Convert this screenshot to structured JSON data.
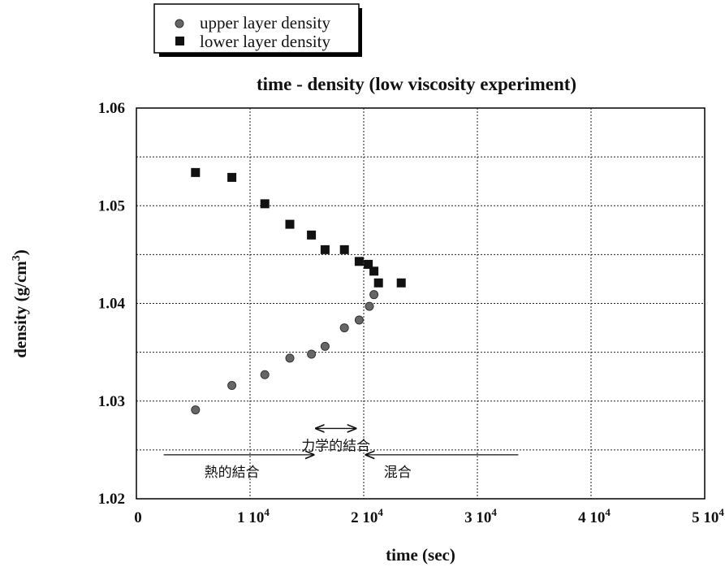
{
  "chart_data": {
    "type": "scatter",
    "title": "time - density  (low viscosity experiment)",
    "xlabel": "time  (sec)",
    "ylabel": "density  (g/cm",
    "ylabel_sup": "3",
    "ylabel_close": ")",
    "xlim": [
      0,
      50000
    ],
    "ylim": [
      1.02,
      1.06
    ],
    "x_ticks": [
      0,
      10000,
      20000,
      30000,
      40000,
      50000
    ],
    "x_tick_labels": [
      {
        "base": "0",
        "sup": ""
      },
      {
        "base": "1 10",
        "sup": "4"
      },
      {
        "base": "2 10",
        "sup": "4"
      },
      {
        "base": "3 10",
        "sup": "4"
      },
      {
        "base": "4 10",
        "sup": "4"
      },
      {
        "base": "5 10",
        "sup": "4"
      }
    ],
    "y_ticks": [
      1.02,
      1.03,
      1.04,
      1.05,
      1.06
    ],
    "y_tick_labels": [
      "1.02",
      "1.03",
      "1.04",
      "1.05",
      "1.06"
    ],
    "grid": true,
    "legend_position": "top-left (outside plot)",
    "series": [
      {
        "name": "upper layer density",
        "marker": "circle",
        "color": "#666666",
        "points": [
          [
            5200,
            1.0291
          ],
          [
            8400,
            1.0316
          ],
          [
            11300,
            1.0327
          ],
          [
            13500,
            1.0344
          ],
          [
            15400,
            1.0348
          ],
          [
            16600,
            1.0356
          ],
          [
            18300,
            1.0375
          ],
          [
            19600,
            1.0383
          ],
          [
            20500,
            1.0397
          ],
          [
            20900,
            1.0409
          ]
        ]
      },
      {
        "name": "lower layer density",
        "marker": "square",
        "color": "#111111",
        "points": [
          [
            5200,
            1.0534
          ],
          [
            8400,
            1.0529
          ],
          [
            11300,
            1.0502
          ],
          [
            13500,
            1.0481
          ],
          [
            15400,
            1.047
          ],
          [
            16600,
            1.0455
          ],
          [
            18300,
            1.0455
          ],
          [
            19600,
            1.0443
          ],
          [
            20400,
            1.044
          ],
          [
            20900,
            1.0433
          ],
          [
            21300,
            1.0421
          ],
          [
            23300,
            1.0421
          ]
        ]
      }
    ],
    "annotations": [
      {
        "text": "力学的結合",
        "arrow": "both",
        "x_from": 15800,
        "x_to": 19300,
        "y": 1.0272
      },
      {
        "text": "熱的結合",
        "arrow": "right",
        "x_from": 2400,
        "x_to": 15600,
        "y": 1.0245
      },
      {
        "text": "混合",
        "arrow": "left",
        "x_from": 33600,
        "x_to": 20200,
        "y": 1.0245
      }
    ]
  }
}
